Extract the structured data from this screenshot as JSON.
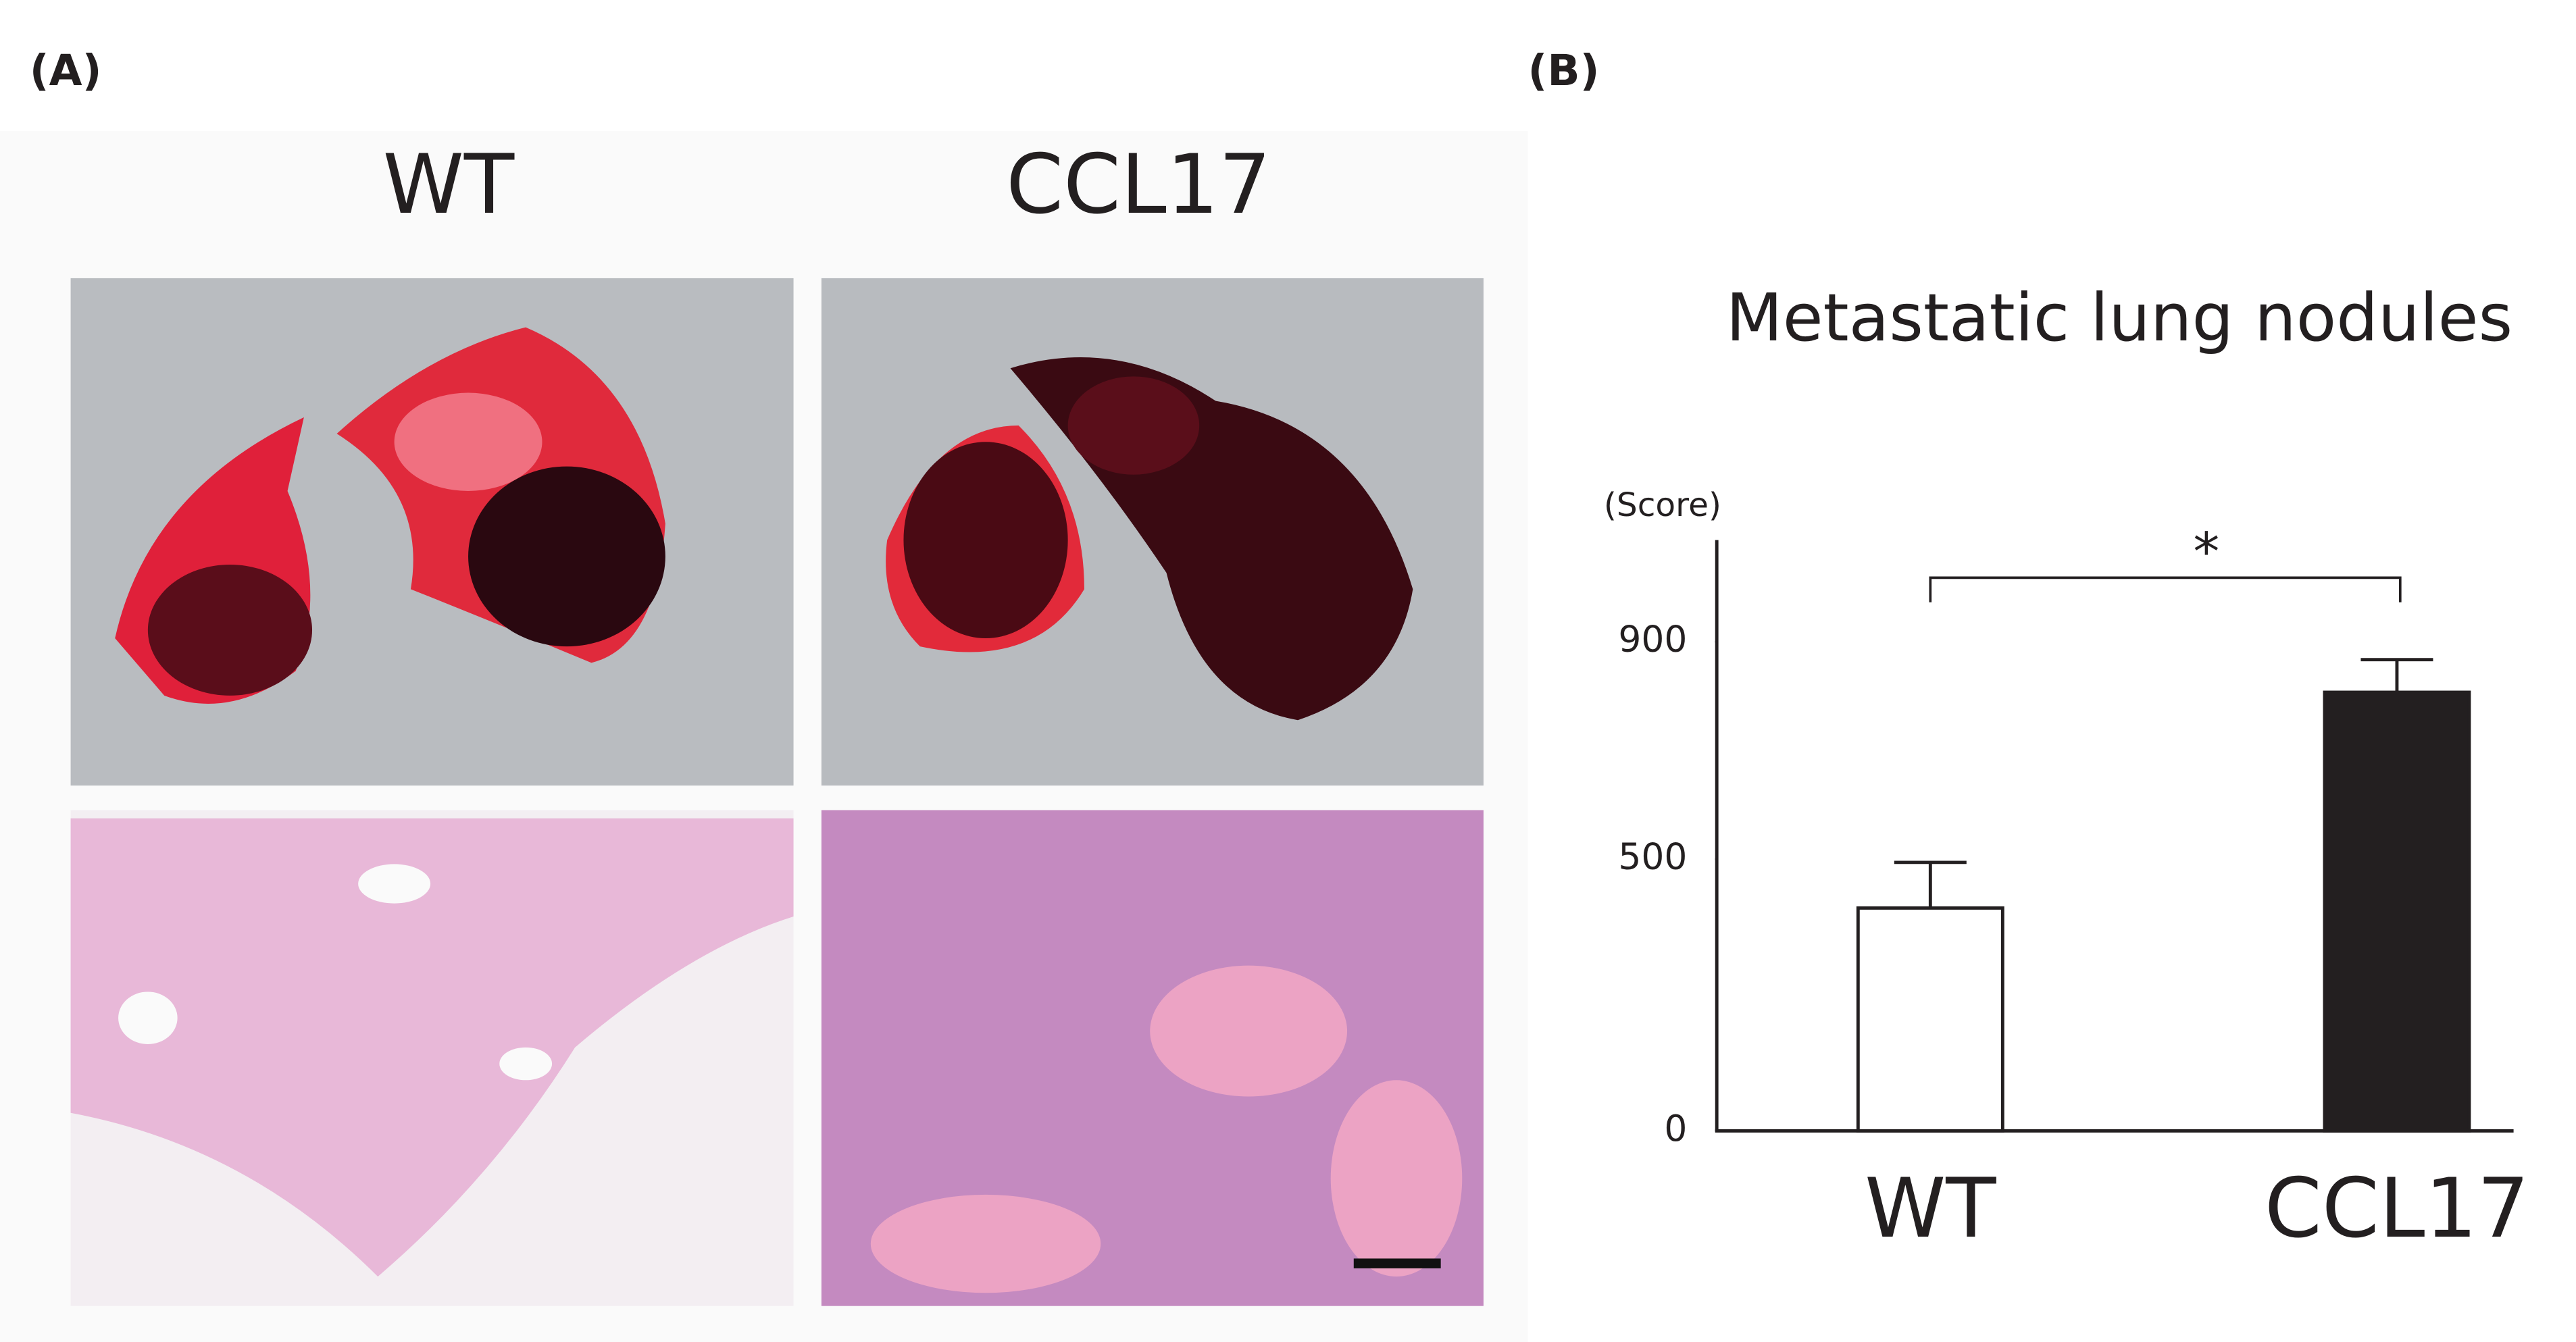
{
  "panel_a": {
    "label": "(A)",
    "columns": [
      "WT",
      "CCL17"
    ]
  },
  "panel_b": {
    "label": "(B)"
  },
  "chart_data": {
    "type": "bar",
    "title": "Metastatic lung nodules",
    "ylabel": "(Score)",
    "categories": [
      "WT",
      "CCL17"
    ],
    "values": [
      410,
      807
    ],
    "errors": [
      84,
      60
    ],
    "colors": [
      "#ffffff",
      "#231f20"
    ],
    "ylim": [
      0,
      1087
    ],
    "yticks": [
      0,
      500,
      900
    ],
    "annotation": "*"
  }
}
